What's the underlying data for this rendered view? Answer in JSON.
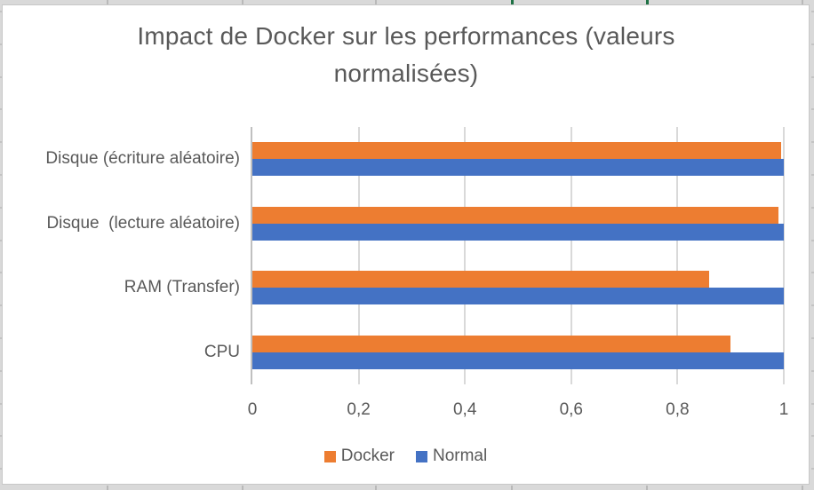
{
  "frame": {
    "sheet_background": "#D9D9D9",
    "chart_border": "#C8C8C8",
    "green_mark_color": "#1F7245"
  },
  "chart_data": {
    "type": "bar",
    "orientation": "horizontal",
    "title": "Impact de Docker sur les performances (valeurs normalisées)",
    "categories": [
      "CPU",
      "RAM (Transfer)",
      "Disque  (lecture aléatoire)",
      "Disque (écriture aléatoire)"
    ],
    "series": [
      {
        "name": "Docker",
        "color": "#ED7D31",
        "values": [
          0.9,
          0.86,
          0.99,
          0.995
        ]
      },
      {
        "name": "Normal",
        "color": "#4472C4",
        "values": [
          1.0,
          1.0,
          1.0,
          1.0
        ]
      }
    ],
    "xlim": [
      0,
      1
    ],
    "xticks": [
      0,
      0.2,
      0.4,
      0.6,
      0.8,
      1
    ],
    "xtick_labels": [
      "0",
      "0,2",
      "0,4",
      "0,6",
      "0,8",
      "1"
    ],
    "grid": true,
    "legend_position": "bottom",
    "text_color": "#595959",
    "gridline_color": "#D9D9D9",
    "axis_line_color": "#C0C0C0"
  }
}
